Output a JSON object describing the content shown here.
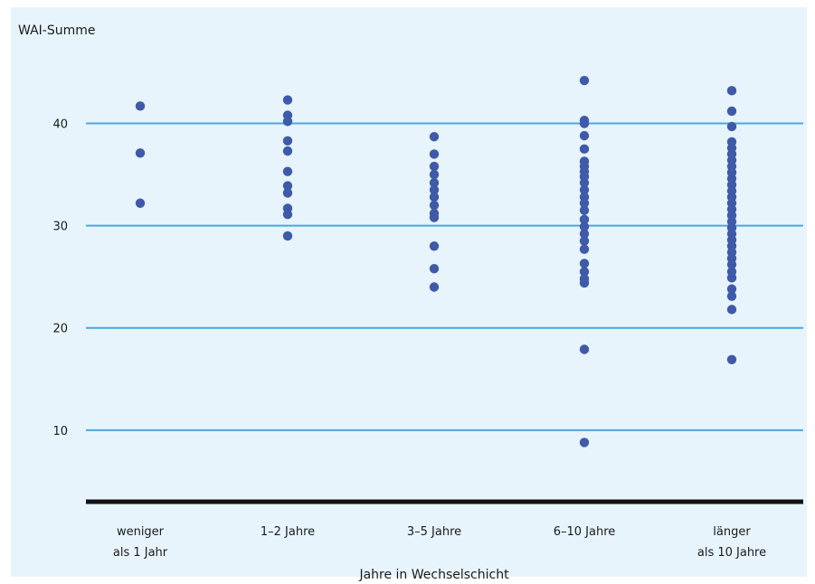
{
  "chart_data": {
    "type": "scatter",
    "ylabel": "WAI-Summe",
    "xlabel": "Jahre in Wechselschicht",
    "categories": [
      [
        "weniger",
        "als 1 Jahr"
      ],
      [
        "1–2 Jahre"
      ],
      [
        "3–5 Jahre"
      ],
      [
        "6–10 Jahre"
      ],
      [
        "länger",
        "als 10 Jahre"
      ]
    ],
    "yticks": [
      10,
      20,
      30,
      40
    ],
    "ylim": [
      3,
      45
    ],
    "grid": true,
    "colors": {
      "point": "#3f5aa8",
      "grid": "#4da6dc",
      "baseline": "#111111",
      "background": "#e7f4fb"
    },
    "series": [
      {
        "values": [
          41.7,
          37.1,
          32.2
        ]
      },
      {
        "values": [
          42.3,
          40.8,
          40.2,
          38.3,
          37.3,
          35.3,
          33.9,
          33.2,
          31.7,
          31.1,
          29.0
        ]
      },
      {
        "values": [
          38.7,
          37.0,
          35.8,
          35.0,
          34.2,
          33.5,
          32.8,
          32.0,
          31.2,
          30.8,
          28.0,
          25.8,
          24.0
        ]
      },
      {
        "values": [
          44.2,
          40.3,
          40.0,
          38.8,
          37.5,
          36.3,
          35.8,
          35.3,
          34.8,
          34.2,
          33.5,
          32.8,
          32.2,
          31.5,
          30.6,
          29.9,
          29.2,
          28.5,
          27.7,
          26.3,
          25.5,
          24.8,
          24.4,
          17.9,
          8.8
        ]
      },
      {
        "values": [
          43.2,
          41.2,
          39.7,
          38.2,
          37.6,
          37.0,
          36.4,
          35.8,
          35.2,
          34.6,
          34.0,
          33.4,
          32.8,
          32.2,
          31.6,
          31.0,
          30.4,
          29.8,
          29.2,
          28.6,
          28.0,
          27.4,
          26.8,
          26.2,
          25.5,
          24.9,
          23.8,
          23.1,
          21.8,
          16.9
        ]
      }
    ]
  }
}
